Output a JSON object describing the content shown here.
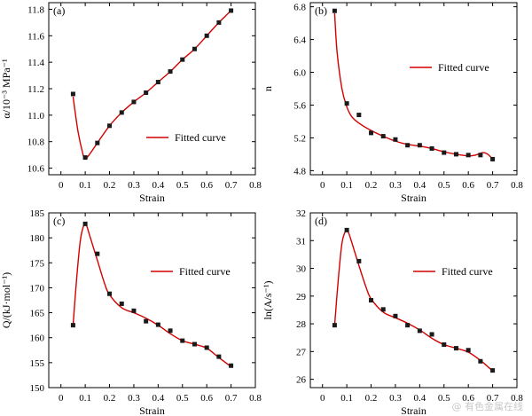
{
  "figure": {
    "legend_label": "Fitted curve",
    "watermark": "@ 有色金属在线"
  },
  "colors": {
    "curve": "#d40000",
    "marker": "#1a1a1a",
    "axis": "#000000"
  },
  "chart_data": [
    {
      "panel": "(a)",
      "type": "scatter",
      "xlabel": "Strain",
      "ylabel": "α/10⁻³ MPa⁻¹",
      "xlim": [
        -0.05,
        0.8
      ],
      "ylim": [
        10.55,
        11.85
      ],
      "xticks": [
        0,
        0.1,
        0.2,
        0.3,
        0.4,
        0.5,
        0.6,
        0.7,
        0.8
      ],
      "xtick_labels": [
        "0",
        "0.1",
        "0.2",
        "0.3",
        "0.4",
        "0.5",
        "0.6",
        "0.7",
        "0.8"
      ],
      "yticks": [
        10.6,
        10.8,
        11.0,
        11.2,
        11.4,
        11.6,
        11.8
      ],
      "ytick_labels": [
        "10.6",
        "10.8",
        "11.0",
        "11.2",
        "11.4",
        "11.6",
        "11.8"
      ],
      "legend": "right-middle",
      "series": [
        {
          "kind": "points",
          "x": [
            0.05,
            0.1,
            0.15,
            0.2,
            0.25,
            0.3,
            0.35,
            0.4,
            0.45,
            0.5,
            0.55,
            0.6,
            0.65,
            0.7
          ],
          "y": [
            11.16,
            10.68,
            10.79,
            10.92,
            11.02,
            11.1,
            11.17,
            11.25,
            11.33,
            11.42,
            11.5,
            11.6,
            11.7,
            11.79
          ]
        },
        {
          "kind": "curve",
          "name": "Fitted curve",
          "x": [
            0.05,
            0.07,
            0.09,
            0.1,
            0.12,
            0.15,
            0.2,
            0.25,
            0.3,
            0.35,
            0.4,
            0.45,
            0.5,
            0.55,
            0.6,
            0.65,
            0.7
          ],
          "y": [
            11.14,
            10.88,
            10.71,
            10.67,
            10.71,
            10.79,
            10.92,
            11.02,
            11.1,
            11.17,
            11.25,
            11.33,
            11.42,
            11.5,
            11.6,
            11.7,
            11.79
          ]
        }
      ]
    },
    {
      "panel": "(b)",
      "type": "scatter",
      "xlabel": "Strain",
      "ylabel": "n",
      "xlim": [
        -0.05,
        0.8
      ],
      "ylim": [
        4.75,
        6.85
      ],
      "xticks": [
        0,
        0.1,
        0.2,
        0.3,
        0.4,
        0.5,
        0.6,
        0.7,
        0.8
      ],
      "xtick_labels": [
        "0",
        "0.1",
        "0.2",
        "0.3",
        "0.4",
        "0.5",
        "0.6",
        "0.7",
        "0.8"
      ],
      "yticks": [
        4.8,
        5.2,
        5.6,
        6.0,
        6.4,
        6.8
      ],
      "ytick_labels": [
        "4.8",
        "5.2",
        "5.6",
        "6.0",
        "6.4",
        "6.8"
      ],
      "legend": "top-right",
      "series": [
        {
          "kind": "points",
          "x": [
            0.05,
            0.1,
            0.15,
            0.2,
            0.25,
            0.3,
            0.35,
            0.4,
            0.45,
            0.5,
            0.55,
            0.6,
            0.65,
            0.7
          ],
          "y": [
            6.75,
            5.62,
            5.48,
            5.26,
            5.22,
            5.18,
            5.11,
            5.11,
            5.07,
            5.02,
            5.0,
            4.99,
            4.99,
            4.94
          ]
        },
        {
          "kind": "curve",
          "name": "Fitted curve",
          "x": [
            0.05,
            0.06,
            0.08,
            0.1,
            0.12,
            0.15,
            0.2,
            0.25,
            0.3,
            0.35,
            0.4,
            0.45,
            0.5,
            0.55,
            0.6,
            0.63,
            0.66,
            0.68,
            0.7
          ],
          "y": [
            6.72,
            6.25,
            5.8,
            5.58,
            5.46,
            5.38,
            5.29,
            5.22,
            5.16,
            5.12,
            5.1,
            5.07,
            5.03,
            5.0,
            4.98,
            4.99,
            5.02,
            5.0,
            4.94
          ]
        }
      ]
    },
    {
      "panel": "(c)",
      "type": "scatter",
      "xlabel": "Strain",
      "ylabel": "Q/(kJ·mol⁻¹)",
      "xlim": [
        -0.05,
        0.8
      ],
      "ylim": [
        150,
        185
      ],
      "xticks": [
        0,
        0.1,
        0.2,
        0.3,
        0.4,
        0.5,
        0.6,
        0.7,
        0.8
      ],
      "xtick_labels": [
        "0",
        "0.1",
        "0.2",
        "0.3",
        "0.4",
        "0.5",
        "0.6",
        "0.7",
        "0.8"
      ],
      "yticks": [
        150,
        155,
        160,
        165,
        170,
        175,
        180,
        185
      ],
      "ytick_labels": [
        "150",
        "155",
        "160",
        "165",
        "170",
        "175",
        "180",
        "185"
      ],
      "legend": "top-right",
      "series": [
        {
          "kind": "points",
          "x": [
            0.05,
            0.1,
            0.15,
            0.2,
            0.25,
            0.3,
            0.35,
            0.4,
            0.45,
            0.5,
            0.55,
            0.6,
            0.65,
            0.7
          ],
          "y": [
            162.5,
            182.8,
            176.8,
            168.8,
            166.8,
            165.4,
            163.3,
            162.6,
            161.4,
            159.4,
            158.7,
            158.0,
            156.2,
            154.4
          ]
        },
        {
          "kind": "curve",
          "name": "Fitted curve",
          "x": [
            0.05,
            0.065,
            0.08,
            0.095,
            0.105,
            0.12,
            0.15,
            0.18,
            0.2,
            0.25,
            0.3,
            0.35,
            0.4,
            0.45,
            0.5,
            0.55,
            0.6,
            0.65,
            0.7
          ],
          "y": [
            162.5,
            172.0,
            179.5,
            182.6,
            182.5,
            180.2,
            175.5,
            170.8,
            168.6,
            166.0,
            165.0,
            163.9,
            162.5,
            160.8,
            159.4,
            158.7,
            157.9,
            156.0,
            154.2
          ]
        }
      ]
    },
    {
      "panel": "(d)",
      "type": "scatter",
      "xlabel": "Strain",
      "ylabel": "ln(A/s⁻¹)",
      "xlim": [
        -0.05,
        0.8
      ],
      "ylim": [
        25.7,
        32
      ],
      "xticks": [
        0,
        0.1,
        0.2,
        0.3,
        0.4,
        0.5,
        0.6,
        0.7,
        0.8
      ],
      "xtick_labels": [
        "0",
        "0.1",
        "0.2",
        "0.3",
        "0.4",
        "0.5",
        "0.6",
        "0.7",
        "0.8"
      ],
      "yticks": [
        26,
        27,
        28,
        29,
        30,
        31,
        32
      ],
      "ytick_labels": [
        "26",
        "27",
        "28",
        "29",
        "30",
        "31",
        "32"
      ],
      "legend": "top-right",
      "series": [
        {
          "kind": "points",
          "x": [
            0.05,
            0.1,
            0.15,
            0.2,
            0.25,
            0.3,
            0.35,
            0.4,
            0.45,
            0.5,
            0.55,
            0.6,
            0.65,
            0.7
          ],
          "y": [
            27.95,
            31.38,
            30.26,
            28.85,
            28.52,
            28.28,
            27.95,
            27.75,
            27.62,
            27.25,
            27.12,
            27.05,
            26.65,
            26.32
          ]
        },
        {
          "kind": "curve",
          "name": "Fitted curve",
          "x": [
            0.05,
            0.065,
            0.08,
            0.095,
            0.105,
            0.12,
            0.15,
            0.18,
            0.2,
            0.25,
            0.3,
            0.35,
            0.4,
            0.45,
            0.5,
            0.55,
            0.6,
            0.65,
            0.7
          ],
          "y": [
            27.95,
            29.6,
            30.9,
            31.35,
            31.33,
            30.95,
            30.1,
            29.3,
            28.9,
            28.42,
            28.22,
            28.02,
            27.78,
            27.48,
            27.25,
            27.12,
            26.98,
            26.68,
            26.3
          ]
        }
      ]
    }
  ]
}
